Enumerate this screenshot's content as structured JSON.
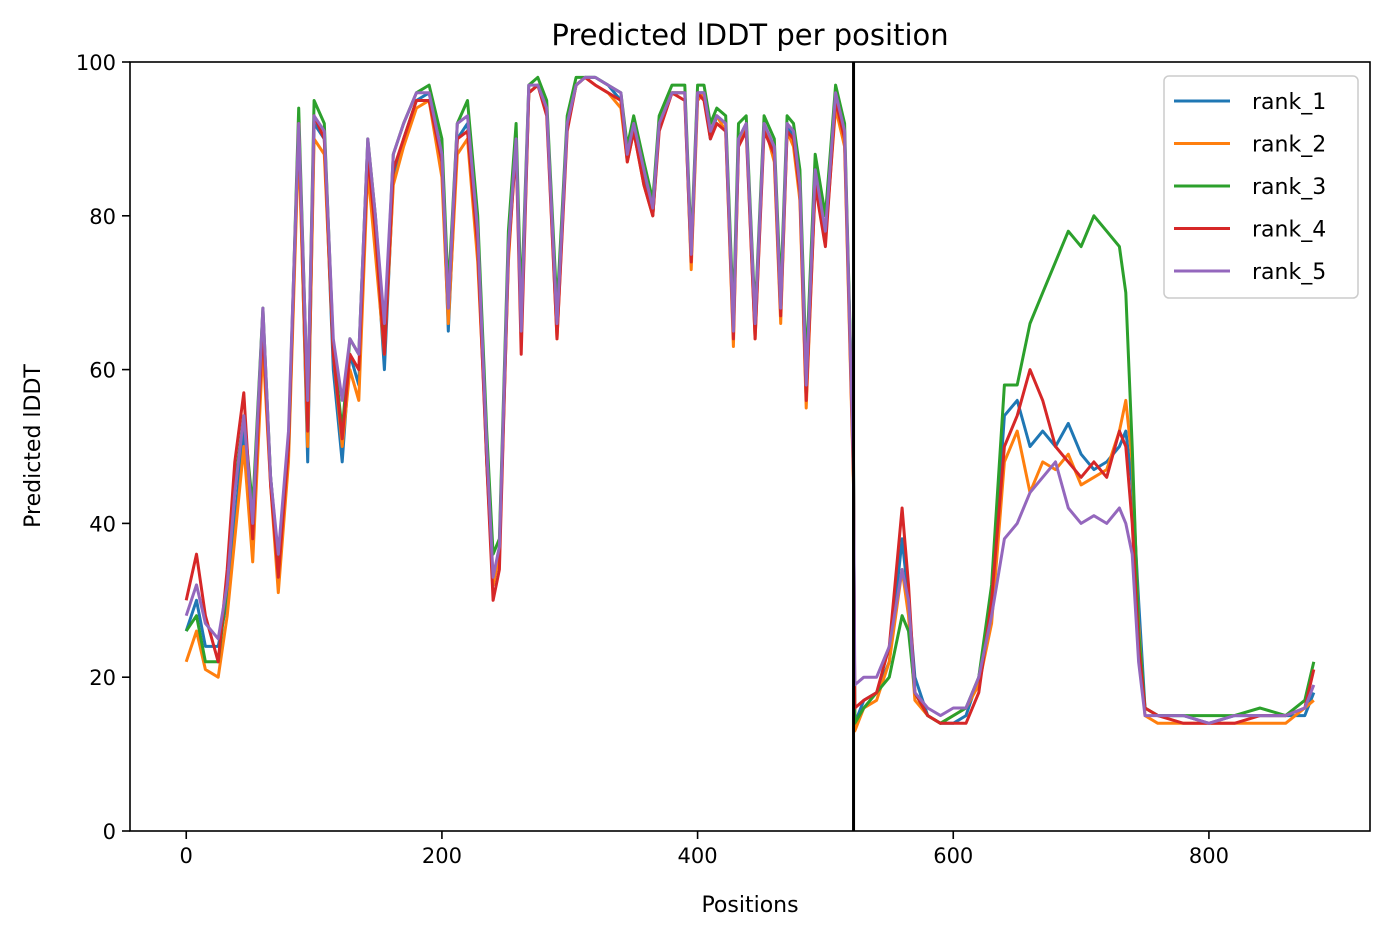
{
  "chart_data": {
    "type": "line",
    "title": "Predicted lDDT per position",
    "xlabel": "Positions",
    "ylabel": "Predicted lDDT",
    "xlim": [
      -44,
      926
    ],
    "ylim": [
      0,
      100
    ],
    "xticks": [
      0,
      200,
      400,
      600,
      800
    ],
    "yticks": [
      0,
      20,
      40,
      60,
      80,
      100
    ],
    "grid": false,
    "legend_position": "top-right",
    "vline_x": 522,
    "colors": [
      "#1f77b4",
      "#ff7f0e",
      "#2ca02c",
      "#d62728",
      "#9467bd"
    ],
    "series": [
      {
        "name": "rank_1",
        "x": [
          0,
          8,
          15,
          25,
          32,
          38,
          45,
          52,
          60,
          66,
          72,
          80,
          88,
          95,
          100,
          108,
          115,
          122,
          128,
          135,
          142,
          148,
          155,
          162,
          170,
          180,
          190,
          200,
          205,
          212,
          220,
          228,
          235,
          240,
          245,
          252,
          258,
          262,
          268,
          275,
          282,
          290,
          298,
          305,
          312,
          320,
          330,
          340,
          345,
          350,
          358,
          365,
          370,
          380,
          390,
          395,
          400,
          405,
          410,
          415,
          422,
          428,
          432,
          438,
          445,
          452,
          460,
          465,
          470,
          475,
          480,
          485,
          492,
          500,
          508,
          515,
          522,
          523,
          530,
          540,
          550,
          560,
          565,
          570,
          580,
          590,
          600,
          610,
          620,
          630,
          640,
          650,
          660,
          670,
          680,
          690,
          700,
          710,
          720,
          730,
          735,
          740,
          745,
          750,
          760,
          780,
          800,
          820,
          840,
          860,
          875,
          882
        ],
        "values": [
          26,
          30,
          24,
          24,
          30,
          40,
          52,
          40,
          66,
          46,
          35,
          50,
          92,
          48,
          92,
          90,
          60,
          48,
          62,
          58,
          88,
          78,
          60,
          85,
          90,
          95,
          96,
          88,
          65,
          90,
          92,
          78,
          48,
          32,
          36,
          75,
          90,
          65,
          96,
          97,
          94,
          65,
          92,
          97,
          98,
          98,
          97,
          95,
          88,
          92,
          85,
          80,
          92,
          96,
          96,
          74,
          96,
          96,
          90,
          93,
          92,
          65,
          90,
          92,
          65,
          92,
          88,
          67,
          92,
          90,
          84,
          56,
          85,
          78,
          95,
          90,
          48,
          14,
          17,
          18,
          22,
          38,
          30,
          20,
          15,
          14,
          14,
          15,
          20,
          30,
          54,
          56,
          50,
          52,
          50,
          53,
          49,
          47,
          48,
          50,
          52,
          45,
          30,
          16,
          15,
          15,
          14,
          15,
          15,
          15,
          15,
          18
        ]
      },
      {
        "name": "rank_2",
        "x": [
          0,
          8,
          15,
          25,
          32,
          38,
          45,
          52,
          60,
          66,
          72,
          80,
          88,
          95,
          100,
          108,
          115,
          122,
          128,
          135,
          142,
          148,
          155,
          162,
          170,
          180,
          190,
          200,
          205,
          212,
          220,
          228,
          235,
          240,
          245,
          252,
          258,
          262,
          268,
          275,
          282,
          290,
          298,
          305,
          312,
          320,
          330,
          340,
          345,
          350,
          358,
          365,
          370,
          380,
          390,
          395,
          400,
          405,
          410,
          415,
          422,
          428,
          432,
          438,
          445,
          452,
          460,
          465,
          470,
          475,
          480,
          485,
          492,
          500,
          508,
          515,
          522,
          523,
          530,
          540,
          550,
          560,
          565,
          570,
          580,
          590,
          600,
          610,
          620,
          630,
          640,
          650,
          660,
          670,
          680,
          690,
          700,
          710,
          720,
          730,
          735,
          740,
          745,
          750,
          760,
          780,
          800,
          820,
          840,
          860,
          875,
          882
        ],
        "values": [
          22,
          26,
          21,
          20,
          28,
          38,
          50,
          35,
          63,
          45,
          31,
          48,
          90,
          50,
          90,
          88,
          62,
          50,
          60,
          56,
          86,
          75,
          62,
          84,
          89,
          94,
          95,
          85,
          66,
          88,
          90,
          74,
          50,
          32,
          36,
          74,
          90,
          64,
          96,
          97,
          94,
          64,
          92,
          97,
          98,
          97,
          96,
          94,
          87,
          91,
          84,
          80,
          92,
          96,
          96,
          73,
          95,
          96,
          91,
          93,
          91,
          63,
          89,
          92,
          64,
          92,
          87,
          66,
          91,
          89,
          82,
          55,
          84,
          77,
          94,
          89,
          45,
          13,
          16,
          17,
          22,
          34,
          28,
          17,
          15,
          14,
          15,
          16,
          19,
          27,
          48,
          52,
          44,
          48,
          47,
          49,
          45,
          46,
          47,
          52,
          56,
          48,
          27,
          15,
          14,
          14,
          14,
          14,
          14,
          14,
          16,
          17
        ]
      },
      {
        "name": "rank_3",
        "x": [
          0,
          8,
          15,
          25,
          32,
          38,
          45,
          52,
          60,
          66,
          72,
          80,
          88,
          95,
          100,
          108,
          115,
          122,
          128,
          135,
          142,
          148,
          155,
          162,
          170,
          180,
          190,
          200,
          205,
          212,
          220,
          228,
          235,
          240,
          245,
          252,
          258,
          262,
          268,
          275,
          282,
          290,
          298,
          305,
          312,
          320,
          330,
          340,
          345,
          350,
          358,
          365,
          370,
          380,
          390,
          395,
          400,
          405,
          410,
          415,
          422,
          428,
          432,
          438,
          445,
          452,
          460,
          465,
          470,
          475,
          480,
          485,
          492,
          500,
          508,
          515,
          522,
          523,
          530,
          540,
          550,
          560,
          565,
          570,
          580,
          590,
          600,
          610,
          620,
          630,
          640,
          650,
          660,
          670,
          680,
          690,
          700,
          710,
          720,
          730,
          735,
          740,
          745,
          750,
          760,
          780,
          800,
          820,
          840,
          860,
          875,
          882
        ],
        "values": [
          26,
          28,
          22,
          22,
          32,
          45,
          54,
          42,
          68,
          46,
          35,
          50,
          94,
          55,
          95,
          92,
          63,
          52,
          64,
          62,
          90,
          80,
          64,
          88,
          92,
          96,
          97,
          90,
          70,
          92,
          95,
          80,
          52,
          36,
          38,
          78,
          92,
          68,
          97,
          98,
          95,
          68,
          93,
          98,
          98,
          98,
          97,
          96,
          89,
          93,
          87,
          82,
          93,
          97,
          97,
          76,
          97,
          97,
          92,
          94,
          93,
          67,
          92,
          93,
          67,
          93,
          90,
          70,
          93,
          92,
          86,
          60,
          88,
          80,
          97,
          92,
          48,
          14,
          16,
          18,
          20,
          28,
          26,
          18,
          15,
          14,
          15,
          16,
          20,
          32,
          58,
          58,
          66,
          70,
          74,
          78,
          76,
          80,
          78,
          76,
          70,
          50,
          26,
          16,
          15,
          15,
          15,
          15,
          16,
          15,
          17,
          22
        ]
      },
      {
        "name": "rank_4",
        "x": [
          0,
          8,
          15,
          25,
          32,
          38,
          45,
          52,
          60,
          66,
          72,
          80,
          88,
          95,
          100,
          108,
          115,
          122,
          128,
          135,
          142,
          148,
          155,
          162,
          170,
          180,
          190,
          200,
          205,
          212,
          220,
          228,
          235,
          240,
          245,
          252,
          258,
          262,
          268,
          275,
          282,
          290,
          298,
          305,
          312,
          320,
          330,
          340,
          345,
          350,
          358,
          365,
          370,
          380,
          390,
          395,
          400,
          405,
          410,
          415,
          422,
          428,
          432,
          438,
          445,
          452,
          460,
          465,
          470,
          475,
          480,
          485,
          492,
          500,
          508,
          515,
          522,
          523,
          530,
          540,
          550,
          560,
          565,
          570,
          580,
          590,
          600,
          610,
          620,
          630,
          640,
          650,
          660,
          670,
          680,
          690,
          700,
          710,
          720,
          730,
          735,
          740,
          745,
          750,
          760,
          780,
          800,
          820,
          840,
          860,
          875,
          882
        ],
        "values": [
          30,
          36,
          28,
          22,
          34,
          48,
          57,
          38,
          66,
          45,
          33,
          50,
          92,
          52,
          93,
          90,
          62,
          51,
          62,
          60,
          88,
          78,
          62,
          86,
          90,
          95,
          95,
          87,
          68,
          90,
          91,
          76,
          48,
          30,
          34,
          75,
          89,
          62,
          96,
          97,
          93,
          64,
          91,
          97,
          98,
          97,
          96,
          95,
          87,
          91,
          84,
          80,
          91,
          96,
          95,
          74,
          96,
          95,
          90,
          92,
          91,
          64,
          89,
          91,
          64,
          91,
          88,
          67,
          91,
          90,
          83,
          56,
          84,
          76,
          95,
          90,
          46,
          16,
          17,
          18,
          24,
          42,
          32,
          18,
          15,
          14,
          14,
          14,
          18,
          30,
          50,
          54,
          60,
          56,
          50,
          48,
          46,
          48,
          46,
          52,
          50,
          40,
          24,
          16,
          15,
          14,
          14,
          14,
          15,
          15,
          16,
          21
        ]
      },
      {
        "name": "rank_5",
        "x": [
          0,
          8,
          15,
          25,
          32,
          38,
          45,
          52,
          60,
          66,
          72,
          80,
          88,
          95,
          100,
          108,
          115,
          122,
          128,
          135,
          142,
          148,
          155,
          162,
          170,
          180,
          190,
          200,
          205,
          212,
          220,
          228,
          235,
          240,
          245,
          252,
          258,
          262,
          268,
          275,
          282,
          290,
          298,
          305,
          312,
          320,
          330,
          340,
          345,
          350,
          358,
          365,
          370,
          380,
          390,
          395,
          400,
          405,
          410,
          415,
          422,
          428,
          432,
          438,
          445,
          452,
          460,
          465,
          470,
          475,
          480,
          485,
          492,
          500,
          508,
          515,
          522,
          523,
          530,
          540,
          550,
          560,
          565,
          570,
          580,
          590,
          600,
          610,
          620,
          630,
          640,
          650,
          660,
          670,
          680,
          690,
          700,
          710,
          720,
          730,
          735,
          740,
          745,
          750,
          760,
          780,
          800,
          820,
          840,
          860,
          875,
          882
        ],
        "values": [
          28,
          32,
          27,
          25,
          32,
          44,
          54,
          40,
          68,
          46,
          36,
          52,
          92,
          56,
          93,
          91,
          64,
          56,
          64,
          62,
          90,
          80,
          66,
          88,
          92,
          96,
          96,
          88,
          68,
          92,
          93,
          78,
          50,
          33,
          37,
          76,
          90,
          65,
          97,
          97,
          94,
          66,
          92,
          97,
          98,
          98,
          97,
          96,
          88,
          92,
          86,
          81,
          92,
          96,
          96,
          75,
          96,
          96,
          91,
          93,
          92,
          65,
          90,
          92,
          66,
          92,
          89,
          68,
          92,
          91,
          84,
          58,
          86,
          78,
          96,
          91,
          47,
          19,
          20,
          20,
          24,
          34,
          30,
          18,
          16,
          15,
          16,
          16,
          20,
          28,
          38,
          40,
          44,
          46,
          48,
          42,
          40,
          41,
          40,
          42,
          40,
          36,
          22,
          15,
          15,
          15,
          14,
          15,
          15,
          15,
          16,
          19
        ]
      }
    ]
  }
}
